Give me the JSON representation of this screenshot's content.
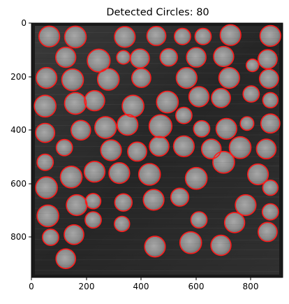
{
  "title": "Detected Circles: 80",
  "x_ticks": [
    "0",
    "200",
    "400",
    "600",
    "800"
  ],
  "y_ticks": [
    "0",
    "200",
    "400",
    "600",
    "800"
  ],
  "colors": {
    "circle_stroke": "#ff1a1a",
    "plate_bg": "#2b2b2b",
    "disc_fill": "#8e8e8e",
    "axis_color": "#000000"
  },
  "image_extent": {
    "width": 915,
    "height": 950
  },
  "tick_values": [
    0,
    200,
    400,
    600,
    800
  ],
  "circles": [
    [
      65,
      50,
      38
    ],
    [
      160,
      52,
      40
    ],
    [
      340,
      52,
      38
    ],
    [
      455,
      48,
      35
    ],
    [
      550,
      50,
      30
    ],
    [
      625,
      50,
      30
    ],
    [
      725,
      45,
      38
    ],
    [
      870,
      48,
      38
    ],
    [
      125,
      128,
      37
    ],
    [
      245,
      140,
      42
    ],
    [
      395,
      132,
      35
    ],
    [
      500,
      128,
      32
    ],
    [
      600,
      128,
      36
    ],
    [
      700,
      125,
      37
    ],
    [
      335,
      128,
      25
    ],
    [
      860,
      135,
      35
    ],
    [
      55,
      205,
      38
    ],
    [
      150,
      212,
      40
    ],
    [
      280,
      210,
      40
    ],
    [
      400,
      205,
      35
    ],
    [
      565,
      205,
      38
    ],
    [
      720,
      205,
      38
    ],
    [
      805,
      158,
      23
    ],
    [
      865,
      208,
      35
    ],
    [
      50,
      310,
      40
    ],
    [
      160,
      300,
      40
    ],
    [
      230,
      290,
      37
    ],
    [
      370,
      310,
      40
    ],
    [
      495,
      295,
      40
    ],
    [
      610,
      275,
      37
    ],
    [
      690,
      280,
      35
    ],
    [
      800,
      265,
      30
    ],
    [
      870,
      288,
      28
    ],
    [
      50,
      410,
      35
    ],
    [
      180,
      400,
      36
    ],
    [
      270,
      390,
      40
    ],
    [
      350,
      380,
      38
    ],
    [
      470,
      385,
      42
    ],
    [
      555,
      345,
      30
    ],
    [
      620,
      395,
      30
    ],
    [
      710,
      395,
      38
    ],
    [
      785,
      375,
      25
    ],
    [
      870,
      375,
      35
    ],
    [
      50,
      520,
      30
    ],
    [
      120,
      465,
      30
    ],
    [
      290,
      475,
      38
    ],
    [
      385,
      480,
      35
    ],
    [
      465,
      460,
      36
    ],
    [
      555,
      460,
      38
    ],
    [
      655,
      470,
      36
    ],
    [
      760,
      465,
      40
    ],
    [
      855,
      470,
      36
    ],
    [
      55,
      615,
      40
    ],
    [
      145,
      575,
      40
    ],
    [
      230,
      555,
      38
    ],
    [
      320,
      560,
      38
    ],
    [
      430,
      565,
      40
    ],
    [
      600,
      580,
      40
    ],
    [
      700,
      520,
      40
    ],
    [
      825,
      565,
      38
    ],
    [
      870,
      615,
      28
    ],
    [
      60,
      720,
      40
    ],
    [
      165,
      680,
      38
    ],
    [
      225,
      665,
      28
    ],
    [
      335,
      670,
      32
    ],
    [
      445,
      660,
      38
    ],
    [
      540,
      650,
      33
    ],
    [
      610,
      735,
      30
    ],
    [
      780,
      680,
      38
    ],
    [
      870,
      705,
      30
    ],
    [
      70,
      800,
      30
    ],
    [
      155,
      790,
      36
    ],
    [
      225,
      735,
      30
    ],
    [
      330,
      750,
      28
    ],
    [
      450,
      835,
      38
    ],
    [
      580,
      820,
      40
    ],
    [
      690,
      830,
      37
    ],
    [
      740,
      745,
      37
    ],
    [
      860,
      780,
      35
    ],
    [
      125,
      880,
      36
    ]
  ]
}
